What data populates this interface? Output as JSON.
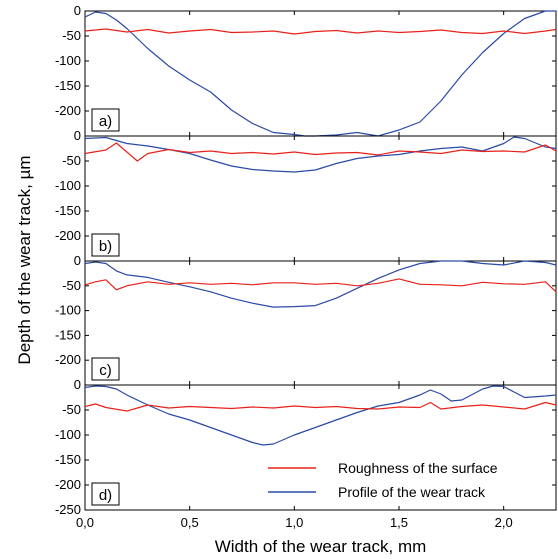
{
  "chart_data": {
    "type": "line",
    "xlabel": "Width of the wear track, mm",
    "ylabel": "Depth of the wear track, µm",
    "x_range": [
      0,
      2.25
    ],
    "x_ticks": [
      0,
      0.5,
      1.0,
      1.5,
      2.0
    ],
    "x_tick_labels": [
      "0,0",
      "0,5",
      "1,0",
      "1,5",
      "2,0"
    ],
    "colors": {
      "roughness": "#e8221b",
      "profile": "#2a4aa6"
    },
    "legend": {
      "placement": "bottom-right of panel d",
      "entries": [
        "Roughness of the surface",
        "Profile of the wear track"
      ]
    },
    "panels": [
      {
        "label": "a)",
        "ylim": [
          -250,
          0
        ],
        "y_ticks": [
          0,
          -50,
          -100,
          -150,
          -200
        ],
        "y_tick_labels": [
          "0",
          "-50",
          "-100",
          "-150",
          "-200"
        ],
        "series": [
          {
            "key": "profile",
            "name": "Profile of the wear track",
            "x": [
              0,
              0.05,
              0.1,
              0.15,
              0.2,
              0.3,
              0.4,
              0.5,
              0.6,
              0.7,
              0.8,
              0.9,
              1.0,
              1.05,
              1.1,
              1.2,
              1.3,
              1.4,
              1.5,
              1.6,
              1.7,
              1.8,
              1.9,
              2.0,
              2.1,
              2.2,
              2.25
            ],
            "y": [
              -12,
              -2,
              -5,
              -18,
              -35,
              -75,
              -110,
              -138,
              -162,
              -198,
              -225,
              -243,
              -247,
              -250,
              -250,
              -248,
              -243,
              -250,
              -238,
              -222,
              -180,
              -128,
              -83,
              -45,
              -15,
              0,
              0
            ]
          },
          {
            "key": "roughness",
            "name": "Roughness of the surface",
            "x": [
              0,
              0.1,
              0.2,
              0.3,
              0.4,
              0.5,
              0.6,
              0.7,
              0.8,
              0.9,
              1.0,
              1.1,
              1.2,
              1.3,
              1.4,
              1.5,
              1.6,
              1.7,
              1.8,
              1.9,
              2.0,
              2.1,
              2.2,
              2.25
            ],
            "y": [
              -40,
              -36,
              -42,
              -37,
              -44,
              -40,
              -37,
              -43,
              -42,
              -40,
              -46,
              -41,
              -39,
              -44,
              -40,
              -43,
              -41,
              -38,
              -43,
              -45,
              -40,
              -45,
              -40,
              -37
            ]
          }
        ]
      },
      {
        "label": "b)",
        "ylim": [
          -250,
          0
        ],
        "y_ticks": [
          0,
          -50,
          -100,
          -150,
          -200
        ],
        "y_tick_labels": [
          "0",
          "-50",
          "-100",
          "-150",
          "-200"
        ],
        "series": [
          {
            "key": "profile",
            "name": "Profile of the wear track",
            "x": [
              0,
              0.1,
              0.2,
              0.3,
              0.4,
              0.5,
              0.6,
              0.7,
              0.8,
              0.9,
              1.0,
              1.1,
              1.2,
              1.3,
              1.4,
              1.5,
              1.6,
              1.7,
              1.8,
              1.9,
              2.0,
              2.05,
              2.1,
              2.2,
              2.25
            ],
            "y": [
              -5,
              -3,
              -15,
              -20,
              -27,
              -35,
              -48,
              -60,
              -67,
              -70,
              -72,
              -68,
              -55,
              -45,
              -40,
              -37,
              -30,
              -25,
              -22,
              -30,
              -15,
              -2,
              -5,
              -22,
              -25
            ]
          },
          {
            "key": "roughness",
            "name": "Roughness of the surface",
            "x": [
              0,
              0.1,
              0.15,
              0.2,
              0.25,
              0.3,
              0.4,
              0.5,
              0.6,
              0.7,
              0.8,
              0.9,
              1.0,
              1.1,
              1.2,
              1.3,
              1.4,
              1.5,
              1.6,
              1.7,
              1.8,
              1.9,
              2.0,
              2.1,
              2.2,
              2.25
            ],
            "y": [
              -35,
              -28,
              -14,
              -32,
              -50,
              -35,
              -27,
              -33,
              -30,
              -35,
              -33,
              -36,
              -32,
              -37,
              -34,
              -33,
              -38,
              -30,
              -32,
              -35,
              -28,
              -31,
              -30,
              -32,
              -18,
              -30
            ]
          }
        ]
      },
      {
        "label": "c)",
        "ylim": [
          -250,
          0
        ],
        "y_ticks": [
          0,
          -50,
          -100,
          -150,
          -200
        ],
        "y_tick_labels": [
          "0",
          "-50",
          "-100",
          "-150",
          "-200"
        ],
        "series": [
          {
            "key": "profile",
            "name": "Profile of the wear track",
            "x": [
              0,
              0.05,
              0.1,
              0.15,
              0.2,
              0.3,
              0.4,
              0.5,
              0.6,
              0.7,
              0.8,
              0.9,
              1.0,
              1.1,
              1.2,
              1.3,
              1.4,
              1.5,
              1.6,
              1.7,
              1.8,
              1.9,
              2.0,
              2.1,
              2.2,
              2.25
            ],
            "y": [
              -5,
              -2,
              -5,
              -20,
              -28,
              -33,
              -43,
              -52,
              -62,
              -75,
              -85,
              -93,
              -92,
              -90,
              -75,
              -55,
              -35,
              -18,
              -5,
              0,
              0,
              -5,
              -8,
              0,
              -3,
              -8
            ]
          },
          {
            "key": "roughness",
            "name": "Roughness of the surface",
            "x": [
              0,
              0.05,
              0.1,
              0.15,
              0.2,
              0.3,
              0.4,
              0.5,
              0.6,
              0.7,
              0.8,
              0.9,
              1.0,
              1.1,
              1.2,
              1.3,
              1.4,
              1.5,
              1.6,
              1.7,
              1.8,
              1.9,
              2.0,
              2.1,
              2.2,
              2.25
            ],
            "y": [
              -48,
              -42,
              -38,
              -58,
              -50,
              -42,
              -47,
              -44,
              -47,
              -45,
              -48,
              -44,
              -44,
              -47,
              -45,
              -50,
              -45,
              -36,
              -47,
              -48,
              -50,
              -43,
              -46,
              -47,
              -42,
              -62
            ]
          }
        ]
      },
      {
        "label": "d)",
        "ylim": [
          -250,
          0
        ],
        "y_ticks": [
          0,
          -50,
          -100,
          -150,
          -200,
          -250
        ],
        "y_tick_labels": [
          "0",
          "-50",
          "-100",
          "-150",
          "-200",
          "-250"
        ],
        "series": [
          {
            "key": "profile",
            "name": "Profile of the wear track",
            "x": [
              0,
              0.05,
              0.1,
              0.15,
              0.2,
              0.3,
              0.4,
              0.5,
              0.6,
              0.7,
              0.8,
              0.85,
              0.9,
              1.0,
              1.1,
              1.2,
              1.3,
              1.4,
              1.5,
              1.6,
              1.65,
              1.7,
              1.75,
              1.8,
              1.9,
              1.95,
              2.0,
              2.1,
              2.2,
              2.25
            ],
            "y": [
              -5,
              -2,
              -3,
              -8,
              -20,
              -40,
              -58,
              -70,
              -85,
              -100,
              -115,
              -120,
              -118,
              -100,
              -85,
              -70,
              -55,
              -42,
              -35,
              -20,
              -10,
              -18,
              -32,
              -30,
              -8,
              -2,
              -3,
              -25,
              -22,
              -20
            ]
          },
          {
            "key": "roughness",
            "name": "Roughness of the surface",
            "x": [
              0,
              0.05,
              0.1,
              0.2,
              0.3,
              0.4,
              0.5,
              0.6,
              0.7,
              0.8,
              0.9,
              1.0,
              1.1,
              1.2,
              1.3,
              1.4,
              1.5,
              1.6,
              1.65,
              1.7,
              1.8,
              1.9,
              2.0,
              2.1,
              2.2,
              2.25
            ],
            "y": [
              -43,
              -38,
              -45,
              -52,
              -40,
              -46,
              -43,
              -45,
              -47,
              -44,
              -46,
              -42,
              -45,
              -43,
              -47,
              -48,
              -44,
              -45,
              -35,
              -48,
              -43,
              -40,
              -44,
              -48,
              -35,
              -40
            ]
          }
        ]
      }
    ]
  }
}
